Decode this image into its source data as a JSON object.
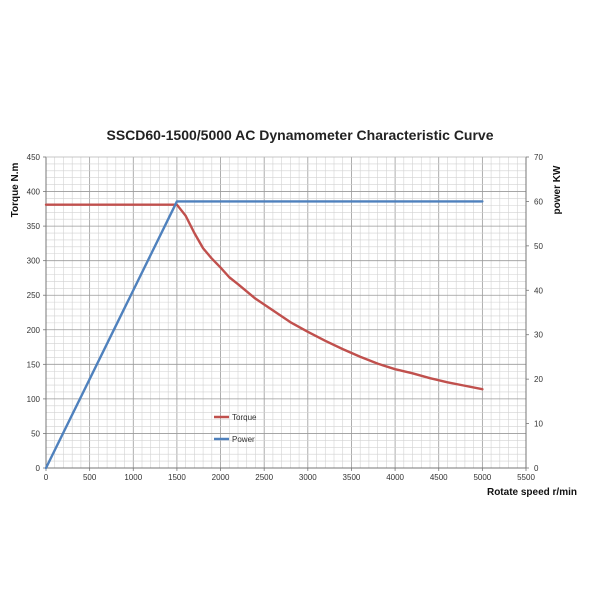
{
  "chart_data": {
    "type": "line",
    "title": "SSCD60-1500/5000 AC Dynamometer Characteristic Curve",
    "xlabel": "Rotate speed r/min",
    "ylabel": "Torque N.m",
    "y2label": "power KW",
    "xlim": [
      0,
      5500
    ],
    "ylim": [
      0,
      450
    ],
    "y2lim": [
      0,
      70
    ],
    "x_ticks": [
      "0",
      "500",
      "1000",
      "1500",
      "2000",
      "2500",
      "3000",
      "3500",
      "4000",
      "4500",
      "5000",
      "5500"
    ],
    "y_ticks": [
      "0",
      "50",
      "100",
      "150",
      "200",
      "250",
      "300",
      "350",
      "400",
      "450"
    ],
    "y2_ticks": [
      "0",
      "10",
      "20",
      "30",
      "40",
      "50",
      "60",
      "70"
    ],
    "grid": true,
    "legend_position": "lower-center-left",
    "series": [
      {
        "name": "Torque",
        "axis": "left",
        "color": "#c0504d",
        "points": [
          [
            0,
            381
          ],
          [
            250,
            381
          ],
          [
            500,
            381
          ],
          [
            750,
            381
          ],
          [
            1000,
            381
          ],
          [
            1250,
            381
          ],
          [
            1500,
            381
          ],
          [
            1600,
            365
          ],
          [
            1700,
            340
          ],
          [
            1800,
            318
          ],
          [
            1900,
            303
          ],
          [
            2000,
            290
          ],
          [
            2100,
            276
          ],
          [
            2200,
            266
          ],
          [
            2400,
            245
          ],
          [
            2600,
            228
          ],
          [
            2800,
            211
          ],
          [
            3000,
            197
          ],
          [
            3200,
            184
          ],
          [
            3400,
            172
          ],
          [
            3600,
            161
          ],
          [
            3800,
            151
          ],
          [
            4000,
            143
          ],
          [
            4200,
            137
          ],
          [
            4400,
            130
          ],
          [
            4600,
            124
          ],
          [
            4800,
            119
          ],
          [
            5000,
            114
          ]
        ]
      },
      {
        "name": "Power",
        "axis": "right",
        "color": "#4f81bd",
        "points": [
          [
            0,
            0
          ],
          [
            1500,
            60
          ],
          [
            5000,
            60
          ]
        ]
      }
    ]
  }
}
